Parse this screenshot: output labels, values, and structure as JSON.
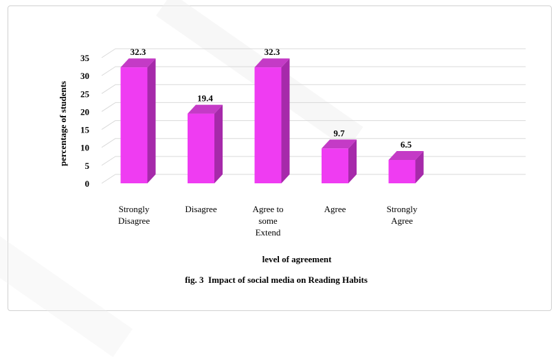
{
  "chart_data": {
    "type": "bar",
    "style": "3d-column",
    "categories": [
      [
        "Strongly",
        "Disagree"
      ],
      [
        "Disagree"
      ],
      [
        "Agree to",
        "some",
        "Extend"
      ],
      [
        "Agree"
      ],
      [
        "Strongly",
        "Agree"
      ]
    ],
    "values": [
      32.3,
      19.4,
      32.3,
      9.7,
      6.5
    ],
    "data_labels": [
      "32.3",
      "19.4",
      "32.3",
      "9.7",
      "6.5"
    ],
    "ylabel": "percentage of students",
    "xlabel": "level of agreement",
    "caption": "fig. 3  Impact of social media on Reading Habits",
    "ylim": [
      0,
      35
    ],
    "yticks": [
      0,
      5,
      10,
      15,
      20,
      25,
      30,
      35
    ],
    "grid": true,
    "legend": "none",
    "colors": {
      "bar_front": "#ef3cf2",
      "bar_side": "#a62aaa",
      "bar_top": "#c43bc6",
      "grid": "#d9d9d9",
      "text": "#000000"
    }
  }
}
